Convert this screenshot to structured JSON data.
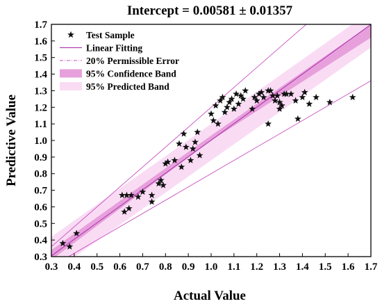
{
  "chart_data": {
    "type": "scatter",
    "title": "Intercept = 0.00581 ± 0.01357",
    "xlabel": "Actual Value",
    "ylabel": "Predictive Value",
    "xlim": [
      0.3,
      1.7
    ],
    "ylim": [
      0.3,
      1.7
    ],
    "xticks": [
      "0.3",
      "0.4",
      "0.5",
      "0.6",
      "0.7",
      "0.8",
      "0.9",
      "1.0",
      "1.1",
      "1.2",
      "1.3",
      "1.4",
      "1.5",
      "1.6",
      "1.7"
    ],
    "yticks": [
      "0.3",
      "0.4",
      "0.5",
      "0.6",
      "0.7",
      "0.8",
      "0.9",
      "1.0",
      "1.1",
      "1.2",
      "1.3",
      "1.4",
      "1.5",
      "1.6",
      "1.7"
    ],
    "grid": false,
    "legend_position": "top-left",
    "legend": [
      {
        "label": "Test Sample",
        "kind": "star"
      },
      {
        "label": "Linear Fitting",
        "kind": "line"
      },
      {
        "label": "20% Permissible Error",
        "kind": "dashdot"
      },
      {
        "label": "95% Confidence Band",
        "kind": "confidence"
      },
      {
        "label": "95% Predicted Band",
        "kind": "prediction"
      }
    ],
    "fit": {
      "intercept": 0.00581,
      "slope": 0.996
    },
    "confidence_band": {
      "x": [
        0.3,
        1.0,
        1.7
      ],
      "lower": [
        0.28,
        1.0,
        1.62
      ],
      "upper": [
        0.34,
        1.03,
        1.7
      ]
    },
    "prediction_band": {
      "x": [
        0.3,
        1.7
      ],
      "lower": [
        0.2,
        1.56
      ],
      "upper": [
        0.42,
        1.78
      ]
    },
    "permissible_error": {
      "upper_factor": 1.2,
      "lower_factor": 0.8
    },
    "series": [
      {
        "marker": "star",
        "points": [
          [
            0.35,
            0.38
          ],
          [
            0.38,
            0.36
          ],
          [
            0.41,
            0.44
          ],
          [
            0.61,
            0.67
          ],
          [
            0.62,
            0.57
          ],
          [
            0.63,
            0.67
          ],
          [
            0.64,
            0.59
          ],
          [
            0.65,
            0.67
          ],
          [
            0.68,
            0.66
          ],
          [
            0.7,
            0.69
          ],
          [
            0.74,
            0.63
          ],
          [
            0.74,
            0.67
          ],
          [
            0.77,
            0.74
          ],
          [
            0.78,
            0.76
          ],
          [
            0.79,
            0.73
          ],
          [
            0.8,
            0.86
          ],
          [
            0.81,
            0.87
          ],
          [
            0.84,
            0.88
          ],
          [
            0.86,
            0.98
          ],
          [
            0.87,
            0.84
          ],
          [
            0.88,
            1.04
          ],
          [
            0.89,
            0.96
          ],
          [
            0.91,
            0.88
          ],
          [
            0.92,
            0.95
          ],
          [
            0.93,
            0.99
          ],
          [
            0.94,
            1.05
          ],
          [
            0.95,
            0.91
          ],
          [
            1.0,
            1.16
          ],
          [
            1.01,
            1.12
          ],
          [
            1.02,
            1.21
          ],
          [
            1.03,
            1.1
          ],
          [
            1.04,
            1.24
          ],
          [
            1.05,
            1.26
          ],
          [
            1.06,
            1.17
          ],
          [
            1.07,
            1.2
          ],
          [
            1.08,
            1.23
          ],
          [
            1.09,
            1.25
          ],
          [
            1.1,
            1.19
          ],
          [
            1.11,
            1.28
          ],
          [
            1.12,
            1.22
          ],
          [
            1.13,
            1.27
          ],
          [
            1.14,
            1.25
          ],
          [
            1.15,
            1.3
          ],
          [
            1.18,
            1.19
          ],
          [
            1.19,
            1.26
          ],
          [
            1.2,
            1.24
          ],
          [
            1.21,
            1.28
          ],
          [
            1.22,
            1.29
          ],
          [
            1.23,
            1.26
          ],
          [
            1.25,
            1.1
          ],
          [
            1.26,
            1.3
          ],
          [
            1.27,
            1.27
          ],
          [
            1.28,
            1.24
          ],
          [
            1.29,
            1.27
          ],
          [
            1.3,
            1.23
          ],
          [
            1.31,
            1.21
          ],
          [
            1.32,
            1.28
          ],
          [
            1.33,
            1.28
          ],
          [
            1.35,
            1.28
          ],
          [
            1.37,
            1.24
          ],
          [
            1.38,
            1.13
          ],
          [
            1.4,
            1.26
          ],
          [
            1.41,
            1.29
          ],
          [
            1.43,
            1.22
          ],
          [
            1.46,
            1.26
          ],
          [
            1.52,
            1.23
          ],
          [
            1.62,
            1.26
          ],
          [
            1.25,
            1.3
          ],
          [
            1.3,
            1.19
          ]
        ]
      }
    ]
  }
}
